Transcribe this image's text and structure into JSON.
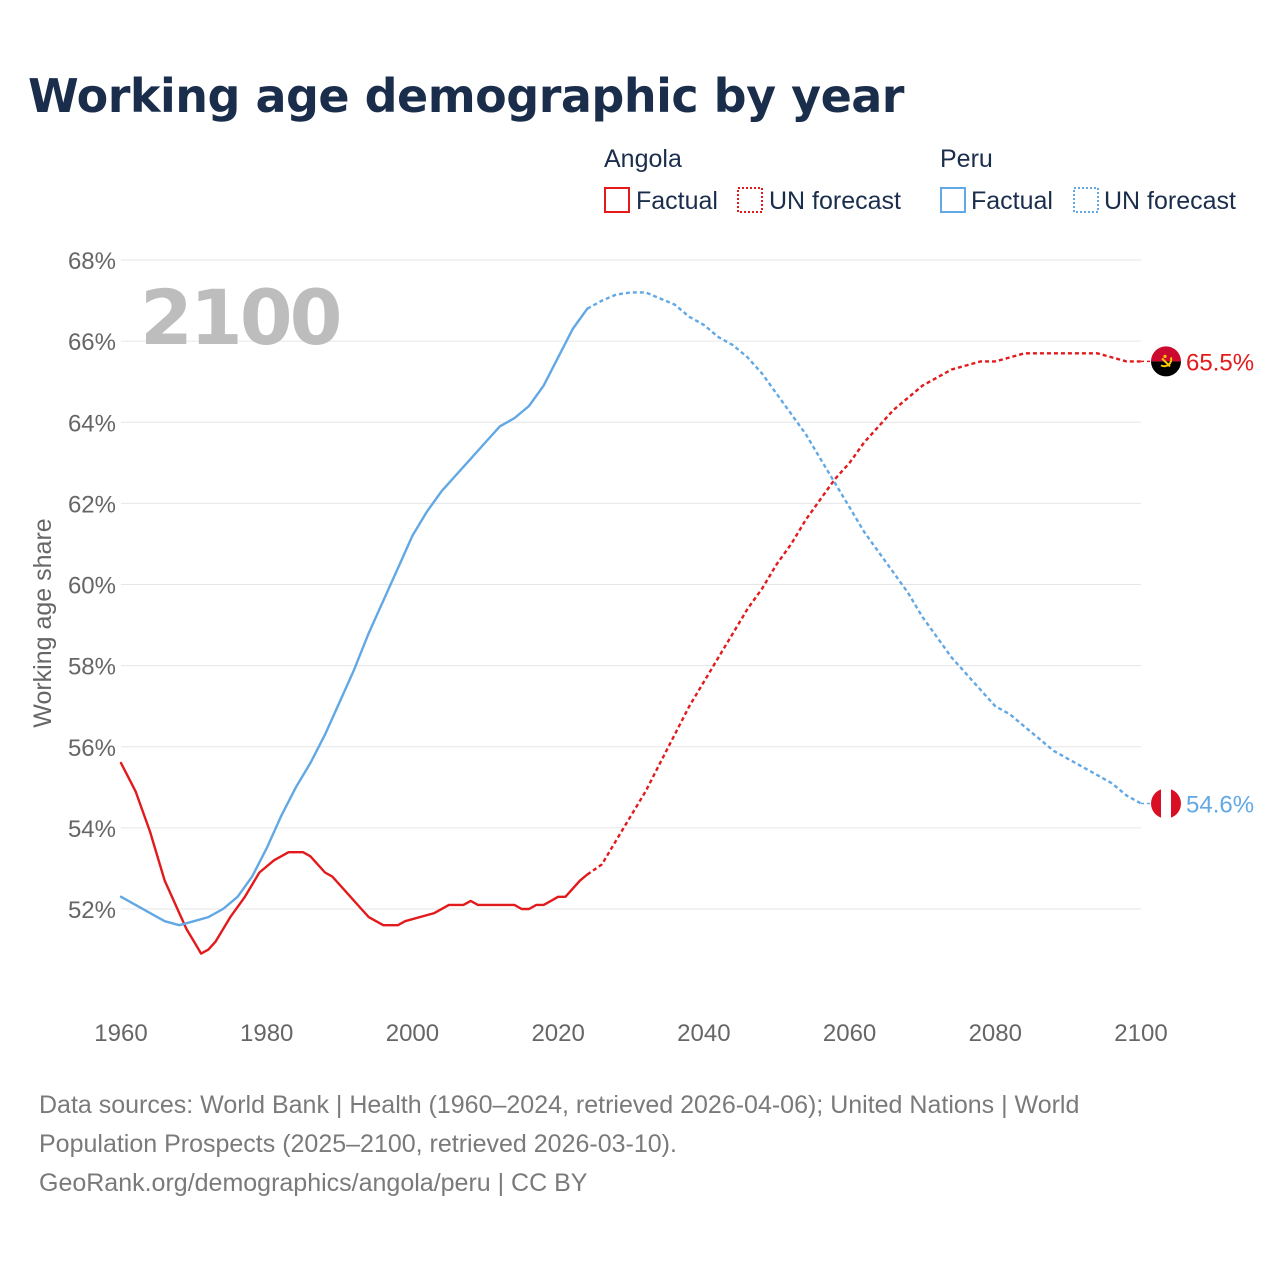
{
  "chart_data": {
    "type": "line",
    "title": "Working age demographic by year",
    "ylabel": "Working age share",
    "xlabel": "",
    "xlim": [
      1960,
      2100
    ],
    "ylim": [
      50,
      68
    ],
    "yticks": [
      52,
      54,
      56,
      58,
      60,
      62,
      64,
      66,
      68
    ],
    "ytick_labels": [
      "52%",
      "54%",
      "56%",
      "58%",
      "60%",
      "62%",
      "64%",
      "66%",
      "68%"
    ],
    "xticks": [
      1960,
      1980,
      2000,
      2020,
      2040,
      2060,
      2080,
      2100
    ],
    "xtick_labels": [
      "1960",
      "1980",
      "2000",
      "2020",
      "2040",
      "2060",
      "2080",
      "2100"
    ],
    "current_year": "2100",
    "legend": {
      "groups": [
        {
          "name": "Angola",
          "factual_label": "Factual",
          "forecast_label": "UN forecast",
          "color": "#e31a1c"
        },
        {
          "name": "Peru",
          "factual_label": "Factual",
          "forecast_label": "UN forecast",
          "color": "#62a8e5"
        }
      ]
    },
    "series": [
      {
        "name": "Angola",
        "color": "#e31a1c",
        "end_label": "65.5%",
        "factual_end_year": 2024,
        "points": [
          [
            1960,
            55.6
          ],
          [
            1962,
            54.9
          ],
          [
            1964,
            53.9
          ],
          [
            1966,
            52.7
          ],
          [
            1968,
            51.9
          ],
          [
            1969,
            51.5
          ],
          [
            1970,
            51.2
          ],
          [
            1971,
            50.9
          ],
          [
            1972,
            51.0
          ],
          [
            1973,
            51.2
          ],
          [
            1975,
            51.8
          ],
          [
            1977,
            52.3
          ],
          [
            1979,
            52.9
          ],
          [
            1981,
            53.2
          ],
          [
            1983,
            53.4
          ],
          [
            1985,
            53.4
          ],
          [
            1986,
            53.3
          ],
          [
            1988,
            52.9
          ],
          [
            1989,
            52.8
          ],
          [
            1991,
            52.4
          ],
          [
            1993,
            52.0
          ],
          [
            1994,
            51.8
          ],
          [
            1996,
            51.6
          ],
          [
            1998,
            51.6
          ],
          [
            1999,
            51.7
          ],
          [
            2001,
            51.8
          ],
          [
            2003,
            51.9
          ],
          [
            2005,
            52.1
          ],
          [
            2007,
            52.1
          ],
          [
            2008,
            52.2
          ],
          [
            2009,
            52.1
          ],
          [
            2011,
            52.1
          ],
          [
            2013,
            52.1
          ],
          [
            2014,
            52.1
          ],
          [
            2015,
            52.0
          ],
          [
            2016,
            52.0
          ],
          [
            2017,
            52.1
          ],
          [
            2018,
            52.1
          ],
          [
            2019,
            52.2
          ],
          [
            2020,
            52.3
          ],
          [
            2021,
            52.3
          ],
          [
            2022,
            52.5
          ],
          [
            2023,
            52.7
          ],
          [
            2024,
            52.85
          ],
          [
            2026,
            53.1
          ],
          [
            2028,
            53.7
          ],
          [
            2030,
            54.3
          ],
          [
            2032,
            54.9
          ],
          [
            2034,
            55.6
          ],
          [
            2036,
            56.3
          ],
          [
            2038,
            57.0
          ],
          [
            2040,
            57.6
          ],
          [
            2042,
            58.2
          ],
          [
            2044,
            58.8
          ],
          [
            2046,
            59.4
          ],
          [
            2048,
            59.9
          ],
          [
            2050,
            60.5
          ],
          [
            2052,
            61.0
          ],
          [
            2054,
            61.6
          ],
          [
            2056,
            62.1
          ],
          [
            2058,
            62.6
          ],
          [
            2060,
            63.0
          ],
          [
            2062,
            63.5
          ],
          [
            2064,
            63.9
          ],
          [
            2066,
            64.3
          ],
          [
            2068,
            64.6
          ],
          [
            2070,
            64.9
          ],
          [
            2072,
            65.1
          ],
          [
            2074,
            65.3
          ],
          [
            2076,
            65.4
          ],
          [
            2078,
            65.5
          ],
          [
            2080,
            65.5
          ],
          [
            2082,
            65.6
          ],
          [
            2084,
            65.7
          ],
          [
            2086,
            65.7
          ],
          [
            2088,
            65.7
          ],
          [
            2090,
            65.7
          ],
          [
            2092,
            65.7
          ],
          [
            2094,
            65.7
          ],
          [
            2096,
            65.6
          ],
          [
            2098,
            65.5
          ],
          [
            2100,
            65.5
          ]
        ]
      },
      {
        "name": "Peru",
        "color": "#62a8e5",
        "end_label": "54.6%",
        "factual_end_year": 2024,
        "points": [
          [
            1960,
            52.3
          ],
          [
            1962,
            52.1
          ],
          [
            1964,
            51.9
          ],
          [
            1966,
            51.7
          ],
          [
            1968,
            51.6
          ],
          [
            1970,
            51.7
          ],
          [
            1972,
            51.8
          ],
          [
            1974,
            52.0
          ],
          [
            1976,
            52.3
          ],
          [
            1978,
            52.8
          ],
          [
            1980,
            53.5
          ],
          [
            1982,
            54.3
          ],
          [
            1984,
            55.0
          ],
          [
            1986,
            55.6
          ],
          [
            1988,
            56.3
          ],
          [
            1990,
            57.1
          ],
          [
            1992,
            57.9
          ],
          [
            1994,
            58.8
          ],
          [
            1996,
            59.6
          ],
          [
            1998,
            60.4
          ],
          [
            2000,
            61.2
          ],
          [
            2002,
            61.8
          ],
          [
            2004,
            62.3
          ],
          [
            2006,
            62.7
          ],
          [
            2008,
            63.1
          ],
          [
            2010,
            63.5
          ],
          [
            2012,
            63.9
          ],
          [
            2014,
            64.1
          ],
          [
            2016,
            64.4
          ],
          [
            2018,
            64.9
          ],
          [
            2020,
            65.6
          ],
          [
            2022,
            66.3
          ],
          [
            2024,
            66.8
          ],
          [
            2026,
            67.0
          ],
          [
            2028,
            67.15
          ],
          [
            2030,
            67.2
          ],
          [
            2032,
            67.2
          ],
          [
            2034,
            67.05
          ],
          [
            2036,
            66.9
          ],
          [
            2038,
            66.6
          ],
          [
            2040,
            66.4
          ],
          [
            2042,
            66.1
          ],
          [
            2044,
            65.9
          ],
          [
            2046,
            65.6
          ],
          [
            2048,
            65.2
          ],
          [
            2050,
            64.7
          ],
          [
            2052,
            64.2
          ],
          [
            2054,
            63.7
          ],
          [
            2056,
            63.1
          ],
          [
            2058,
            62.5
          ],
          [
            2060,
            61.9
          ],
          [
            2062,
            61.3
          ],
          [
            2064,
            60.8
          ],
          [
            2066,
            60.3
          ],
          [
            2068,
            59.8
          ],
          [
            2070,
            59.2
          ],
          [
            2072,
            58.7
          ],
          [
            2074,
            58.2
          ],
          [
            2076,
            57.8
          ],
          [
            2078,
            57.4
          ],
          [
            2080,
            57.0
          ],
          [
            2082,
            56.8
          ],
          [
            2084,
            56.5
          ],
          [
            2086,
            56.2
          ],
          [
            2088,
            55.9
          ],
          [
            2090,
            55.7
          ],
          [
            2092,
            55.5
          ],
          [
            2094,
            55.3
          ],
          [
            2096,
            55.1
          ],
          [
            2098,
            54.8
          ],
          [
            2100,
            54.6
          ]
        ]
      }
    ]
  },
  "footer": {
    "source_line1": "Data sources: World Bank | Health (1960–2024, retrieved 2026-04-06); United Nations | World",
    "source_line2": "Population Prospects (2025–2100, retrieved 2026-03-10).",
    "source_line3": "GeoRank.org/demographics/angola/peru | CC BY"
  },
  "colors": {
    "angola": "#e31a1c",
    "peru": "#62a8e5",
    "title": "#1a2e4c",
    "grid": "#e6e6e6",
    "axis_text": "#666666"
  }
}
